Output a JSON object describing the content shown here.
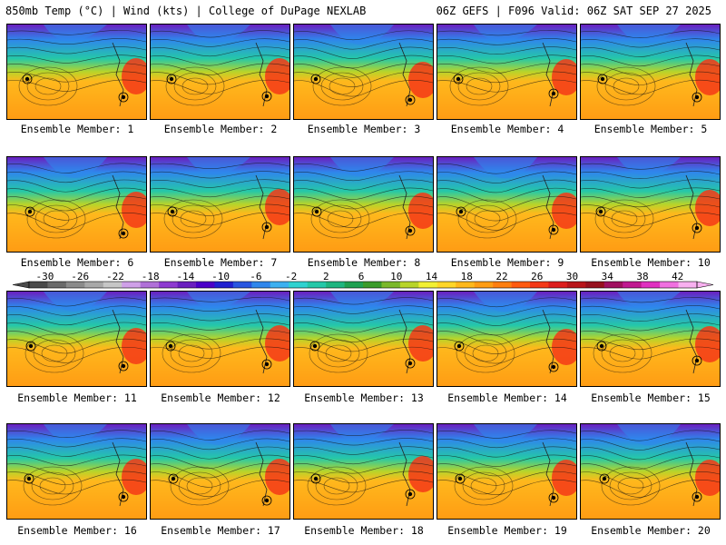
{
  "header": {
    "left": "850mb Temp (°C) | Wind (kts) | College of DuPage NEXLAB",
    "right": "06Z GEFS | F096 Valid: 06Z SAT SEP 27 2025"
  },
  "panels": [
    {
      "label": "Ensemble Member: 1"
    },
    {
      "label": "Ensemble Member: 2"
    },
    {
      "label": "Ensemble Member: 3"
    },
    {
      "label": "Ensemble Member: 4"
    },
    {
      "label": "Ensemble Member: 5"
    },
    {
      "label": "Ensemble Member: 6"
    },
    {
      "label": "Ensemble Member: 7"
    },
    {
      "label": "Ensemble Member: 8"
    },
    {
      "label": "Ensemble Member: 9"
    },
    {
      "label": "Ensemble Member: 10"
    },
    {
      "label": "Ensemble Member: 11"
    },
    {
      "label": "Ensemble Member: 12"
    },
    {
      "label": "Ensemble Member: 13"
    },
    {
      "label": "Ensemble Member: 14"
    },
    {
      "label": "Ensemble Member: 15"
    },
    {
      "label": "Ensemble Member: 16"
    },
    {
      "label": "Ensemble Member: 17"
    },
    {
      "label": "Ensemble Member: 18"
    },
    {
      "label": "Ensemble Member: 19"
    },
    {
      "label": "Ensemble Member: 20"
    }
  ],
  "colorbar": {
    "labels": [
      "-30",
      "-26",
      "-22",
      "-18",
      "-14",
      "-10",
      "-6",
      "-2",
      "2",
      "6",
      "10",
      "14",
      "18",
      "22",
      "26",
      "30",
      "34",
      "38",
      "42"
    ],
    "colors": [
      "#4a4a4a",
      "#6a6a6a",
      "#8a8a8a",
      "#a8a8a8",
      "#c6c6c6",
      "#cfa0e8",
      "#b070d8",
      "#8d3ad0",
      "#6a1fbf",
      "#4b00c8",
      "#2020d0",
      "#2855e0",
      "#2f86ec",
      "#3cb0f0",
      "#2fd2d0",
      "#25c8a8",
      "#1fb57f",
      "#1fa050",
      "#3a9b2a",
      "#7ab82a",
      "#b8d42a",
      "#f2f034",
      "#ffd628",
      "#ffb81c",
      "#ff9c14",
      "#ff7e10",
      "#ff5a10",
      "#f43818",
      "#dc1c1c",
      "#b8141a",
      "#96101e",
      "#a01060",
      "#c01890",
      "#e030c0",
      "#f070e0",
      "#f8b0f0"
    ]
  },
  "colors": {
    "cold": "#6a1fbf",
    "cool": "#2f86ec",
    "mild": "#25c8a8",
    "warm": "#ffb81c",
    "hot": "#f43818"
  }
}
